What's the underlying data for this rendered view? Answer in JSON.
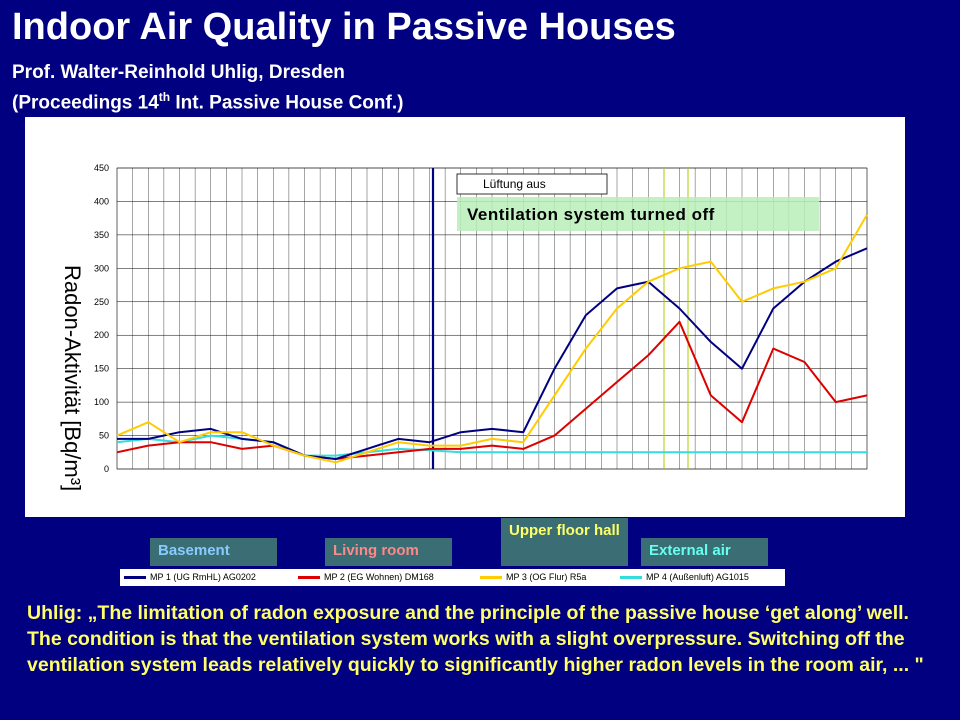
{
  "title": "Indoor Air Quality in Passive Houses",
  "author": "Prof. Walter-Reinhold Uhlig, Dresden",
  "proceedings_prefix": "(Proceedings 14",
  "proceedings_sup": "th",
  "proceedings_suffix": " Int. Passive House Conf.)",
  "quote": "Uhlig: „The limitation of radon exposure and the principle of the passive house ‘get along’ well. The condition is that the ventilation system works with a slight overpressure. Switching off the ventilation system leads relatively quickly to significantly higher radon levels in the room air, ... \"",
  "location_tags": {
    "basement": "Basement",
    "living_room": "Living room",
    "upper_floor": "Upper floor hall",
    "external": "External air"
  },
  "colors": {
    "background": "#000080",
    "mp1": "#000080",
    "mp2": "#dd0000",
    "mp3": "#ffcc00",
    "mp4": "#33dddd"
  },
  "chart_data": {
    "type": "line",
    "ylabel": "Radon-Aktivität  [Bq/m³]",
    "ylim": [
      0,
      450
    ],
    "yticks": [
      0,
      50,
      100,
      150,
      200,
      250,
      300,
      350,
      400,
      450
    ],
    "grid": true,
    "annotation_de": "Lüftung aus",
    "annotation_en": "Ventilation system turned off",
    "x": [
      0,
      6,
      12,
      18,
      24,
      30,
      36,
      42,
      48,
      54,
      60,
      66,
      72,
      78,
      84,
      90,
      96,
      102,
      108,
      114,
      120,
      126,
      132,
      138,
      144
    ],
    "series": [
      {
        "name": "MP 1 (UG RmHL) AG0202",
        "values": [
          45,
          45,
          55,
          60,
          45,
          40,
          20,
          15,
          30,
          45,
          40,
          55,
          60,
          55,
          150,
          230,
          270,
          280,
          240,
          190,
          150,
          240,
          280,
          310,
          330
        ]
      },
      {
        "name": "MP 2 (EG Wohnen) DM168",
        "values": [
          25,
          35,
          40,
          40,
          30,
          35,
          20,
          15,
          20,
          25,
          30,
          30,
          35,
          30,
          50,
          90,
          130,
          170,
          220,
          110,
          70,
          180,
          160,
          100,
          110
        ]
      },
      {
        "name": "MP 3 (OG Flur) R5a",
        "values": [
          50,
          70,
          40,
          55,
          55,
          35,
          20,
          10,
          25,
          40,
          35,
          35,
          45,
          40,
          110,
          180,
          240,
          280,
          300,
          310,
          250,
          270,
          280,
          300,
          380
        ]
      },
      {
        "name": "MP 4 (Außenluft) AG1015",
        "values": [
          40,
          45,
          40,
          50,
          45,
          40,
          20,
          20,
          25,
          30,
          28,
          25,
          25,
          25,
          25,
          25,
          25,
          25,
          25,
          25,
          25,
          25,
          25,
          25,
          25
        ]
      }
    ]
  }
}
